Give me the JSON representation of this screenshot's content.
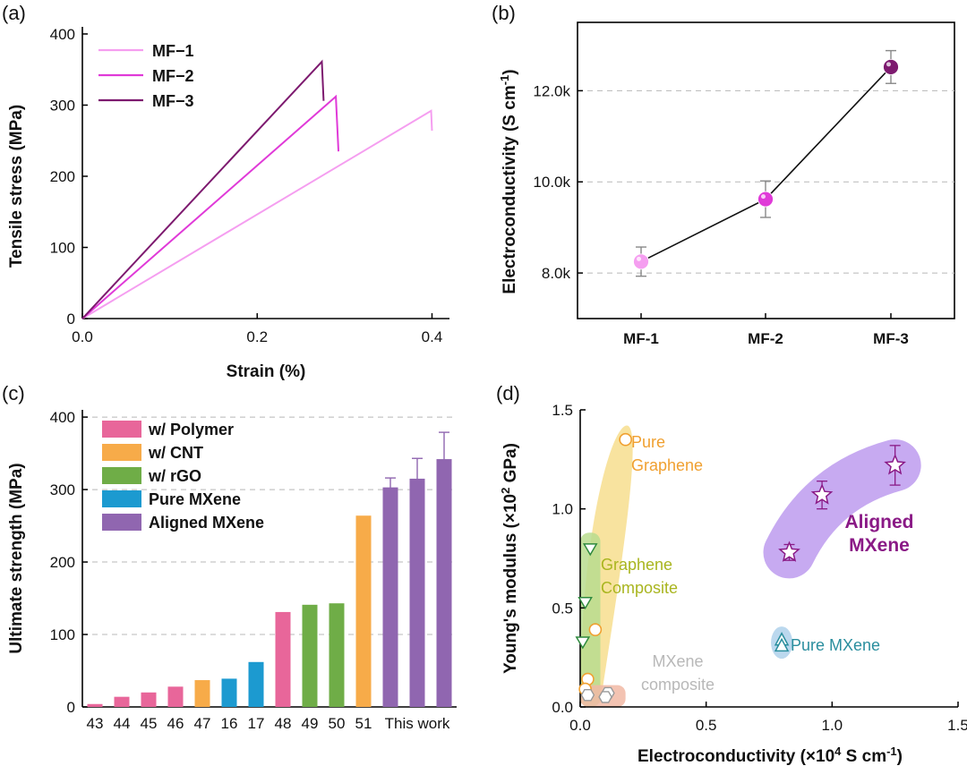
{
  "colors": {
    "mf1": "#f59ef0",
    "mf2": "#e03ad8",
    "mf3": "#7d1a6f",
    "polymer": "#e8669a",
    "cnt": "#f7ab49",
    "rgo": "#6fad47",
    "pure_mxene": "#1c9ad0",
    "aligned_mxene": "#9066b0",
    "graphene_region": "#f7de8e",
    "graphene_comp_region": "#b9dc8e",
    "mxene_comp_region": "#f1b9a5",
    "pure_mxene_region": "#b4d4ec",
    "aligned_region": "#c4a5f0"
  },
  "panels": {
    "a": {
      "label": "(a)",
      "chart_data": {
        "type": "line",
        "xlabel": "Strain (%)",
        "ylabel": "Tensile stress (MPa)",
        "xlim": [
          0,
          0.42
        ],
        "ylim": [
          0,
          410
        ],
        "xticks": [
          "0.0",
          "0.2",
          "0.4"
        ],
        "yticks": [
          "0",
          "100",
          "200",
          "300",
          "400"
        ],
        "series": [
          {
            "name": "MF−1",
            "x": [
              0,
              0.399,
              0.4
            ],
            "y": [
              0,
              292,
              264
            ]
          },
          {
            "name": "MF−2",
            "x": [
              0,
              0.29,
              0.293
            ],
            "y": [
              0,
              312,
              235
            ]
          },
          {
            "name": "MF−3",
            "x": [
              0,
              0.274,
              0.276
            ],
            "y": [
              0,
              361,
              306
            ]
          }
        ],
        "legend": "top-left"
      }
    },
    "b": {
      "label": "(b)",
      "chart_data": {
        "type": "line",
        "categories": [
          "MF-1",
          "MF-2",
          "MF-3"
        ],
        "ylabel": "Electroconductivity (S cm-1)",
        "ylim": [
          7000,
          13500
        ],
        "yticks": [
          "8.0k",
          "10.0k",
          "12.0k"
        ],
        "grid": true,
        "series": [
          {
            "values": [
              8250,
              9620,
              12520
            ],
            "errors": [
              320,
              400,
              360
            ]
          }
        ]
      }
    },
    "c": {
      "label": "(c)",
      "chart_data": {
        "type": "bar",
        "ylabel": "Ultimate strength (MPa)",
        "ylim": [
          0,
          410
        ],
        "yticks": [
          "0",
          "100",
          "200",
          "300",
          "400"
        ],
        "grid": true,
        "categories": [
          "43",
          "44",
          "45",
          "46",
          "47",
          "16",
          "17",
          "48",
          "49",
          "50",
          "51",
          "This work"
        ],
        "bars": [
          {
            "tick": "43",
            "value": 4,
            "group": "polymer"
          },
          {
            "tick": "44",
            "value": 14,
            "group": "polymer"
          },
          {
            "tick": "45",
            "value": 20,
            "group": "polymer"
          },
          {
            "tick": "46",
            "value": 28,
            "group": "polymer"
          },
          {
            "tick": "47",
            "value": 37,
            "group": "cnt"
          },
          {
            "tick": "16",
            "value": 39,
            "group": "pure_mxene"
          },
          {
            "tick": "17",
            "value": 62,
            "group": "pure_mxene"
          },
          {
            "tick": "48",
            "value": 131,
            "group": "polymer"
          },
          {
            "tick": "49",
            "value": 141,
            "group": "rgo"
          },
          {
            "tick": "50",
            "value": 143,
            "group": "rgo"
          },
          {
            "tick": "51",
            "value": 264,
            "group": "cnt"
          },
          {
            "tick": "This work",
            "value": 303,
            "group": "aligned_mxene",
            "error": 13
          },
          {
            "tick": "This work",
            "value": 315,
            "group": "aligned_mxene",
            "error": 28
          },
          {
            "tick": "This work",
            "value": 342,
            "group": "aligned_mxene",
            "error": 37
          }
        ],
        "legend": [
          {
            "key": "polymer",
            "label": "w/ Polymer"
          },
          {
            "key": "cnt",
            "label": "w/ CNT"
          },
          {
            "key": "rgo",
            "label": "w/ rGO"
          },
          {
            "key": "pure_mxene",
            "label": "Pure MXene"
          },
          {
            "key": "aligned_mxene",
            "label": "Aligned MXene"
          }
        ]
      }
    },
    "d": {
      "label": "(d)",
      "chart_data": {
        "type": "scatter",
        "xlabel": "Electroconductivity (×10⁴ S cm⁻¹)",
        "ylabel": "Young's modulus (×10² GPa)",
        "xlim": [
          0,
          1.5
        ],
        "ylim": [
          0,
          1.5
        ],
        "xticks": [
          "0.0",
          "0.5",
          "1.0",
          "1.5"
        ],
        "yticks": [
          "0.0",
          "0.5",
          "1.0",
          "1.5"
        ],
        "groups": [
          {
            "key": "pure_graphene",
            "label_lines": [
              "Pure",
              "Graphene"
            ],
            "label_color": "#f0a030",
            "points": [
              [
                0.18,
                1.35
              ],
              [
                0.06,
                0.39
              ],
              [
                0.03,
                0.14
              ],
              [
                0.02,
                0.09
              ]
            ]
          },
          {
            "key": "graphene_composite",
            "label_lines": [
              "Graphene",
              "Composite"
            ],
            "label_color": "#a9b51f",
            "points": [
              [
                0.04,
                0.8
              ],
              [
                0.02,
                0.53
              ],
              [
                0.01,
                0.33
              ]
            ]
          },
          {
            "key": "mxene_composite",
            "label_lines": [
              "MXene",
              "composite"
            ],
            "label_color": "#b8b8b8",
            "points": [
              [
                0.03,
                0.06
              ],
              [
                0.11,
                0.07
              ],
              [
                0.1,
                0.05
              ]
            ]
          },
          {
            "key": "pure_mxene",
            "label_lines": [
              "Pure MXene"
            ],
            "label_color": "#2a8e9e",
            "points": [
              [
                0.8,
                0.34
              ],
              [
                0.8,
                0.31
              ]
            ]
          },
          {
            "key": "aligned_mxene",
            "label_lines": [
              "Aligned",
              "MXene"
            ],
            "label_color": "#8a1a86",
            "points": [
              [
                0.83,
                0.78
              ],
              [
                0.96,
                1.07
              ],
              [
                1.25,
                1.22
              ]
            ],
            "errors": [
              0.04,
              0.07,
              0.1
            ]
          }
        ]
      }
    }
  }
}
